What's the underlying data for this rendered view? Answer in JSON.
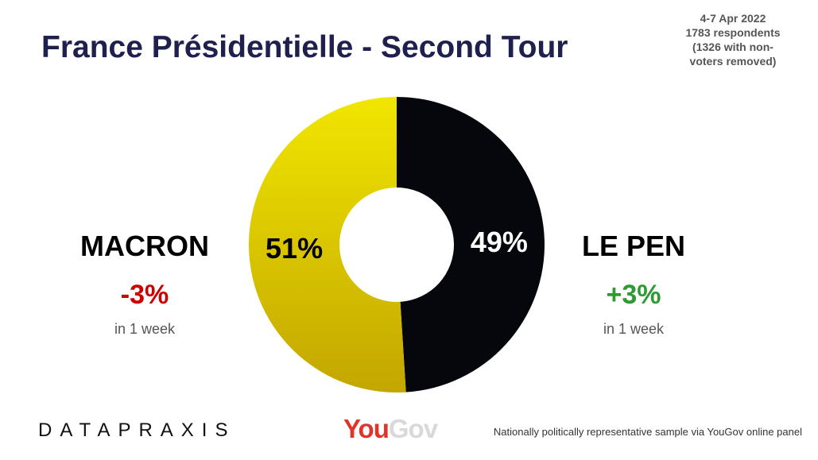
{
  "title": "France Présidentielle - Second Tour",
  "meta": {
    "lines": [
      "4-7 Apr 2022",
      "1783 respondents",
      "(1326 with non-",
      "voters removed)"
    ]
  },
  "candidates": {
    "left": {
      "name": "MACRON",
      "change": "-3%",
      "note": "in 1 week"
    },
    "right": {
      "name": "LE PEN",
      "change": "+3%",
      "note": "in 1 week"
    }
  },
  "colors": {
    "macron": "#d8c400",
    "lepen": "#06070c",
    "decrease": "#cc0000",
    "increase": "#2e9a34",
    "title": "#20204f"
  },
  "chart_data": {
    "type": "pie",
    "style": "donut",
    "slices": [
      {
        "name": "MACRON",
        "value": 51,
        "label": "51%",
        "color": "#d8c400"
      },
      {
        "name": "LE PEN",
        "value": 49,
        "label": "49%",
        "color": "#06070c"
      }
    ]
  },
  "footer": {
    "brand": "DATAPRAXIS",
    "pollster_you": "You",
    "pollster_gov": "Gov",
    "note": "Nationally politically representative sample via YouGov online panel"
  }
}
